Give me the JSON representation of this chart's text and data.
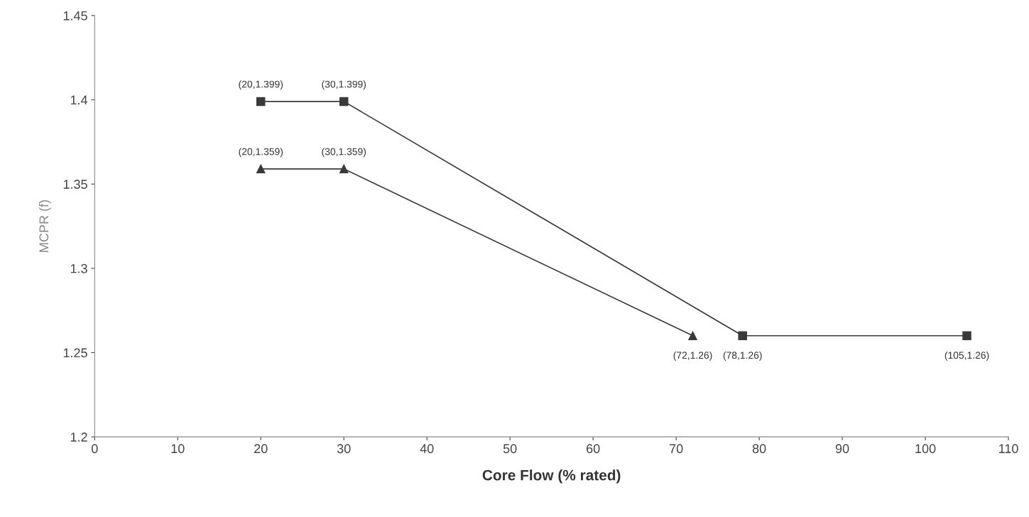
{
  "chart_data": {
    "type": "line",
    "xlabel": "Core Flow (% rated)",
    "ylabel": "MCPR (f)",
    "series": [
      {
        "color": "#3a3a3a",
        "marker": "square",
        "x": [
          20,
          30,
          78,
          105
        ],
        "values": [
          1.399,
          1.399,
          1.26,
          1.26
        ],
        "value_labels": [
          "(20,1.399)",
          "(30,1.399)",
          "(78,1.26)",
          "(105,1.26)"
        ]
      },
      {
        "color": "#3a3a3a",
        "marker": "triangle",
        "x": [
          20,
          30,
          72
        ],
        "values": [
          1.359,
          1.359,
          1.26
        ],
        "value_labels": [
          "(20,1.359)",
          "(30,1.359)",
          "(72,1.26)"
        ]
      }
    ],
    "xlim": [
      0,
      110
    ],
    "xticks": [
      0,
      10,
      20,
      30,
      40,
      50,
      60,
      70,
      80,
      90,
      100,
      110
    ],
    "ylim": [
      1.2,
      1.45
    ],
    "yticks": [
      1.2,
      1.25,
      1.3,
      1.35,
      1.4,
      1.45
    ],
    "grid": false,
    "line_style": "solid"
  }
}
